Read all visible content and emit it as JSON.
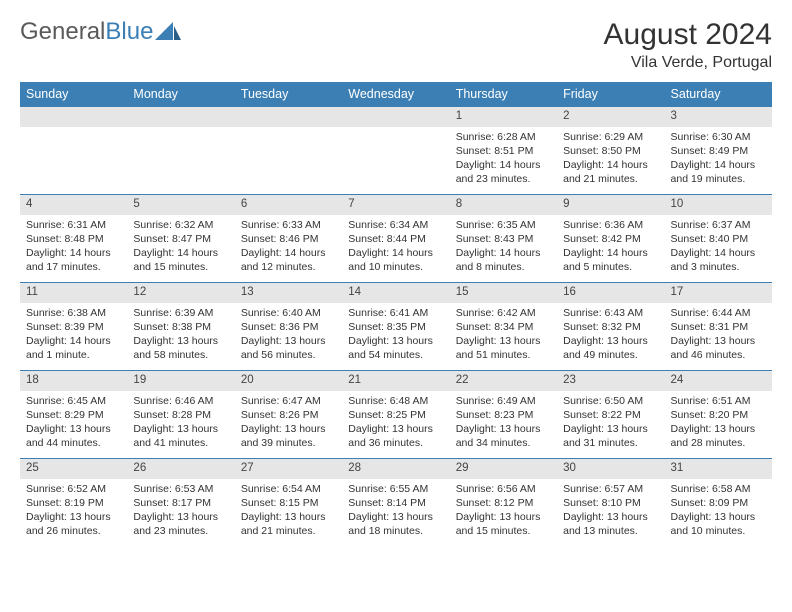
{
  "brand": {
    "text1": "General",
    "text2": "Blue"
  },
  "title": "August 2024",
  "location": "Vila Verde, Portugal",
  "colors": {
    "header_bg": "#3b7fb5",
    "header_text": "#ffffff",
    "daynum_bg": "#e6e6e6",
    "border": "#3b7fb5",
    "page_bg": "#ffffff",
    "text": "#333333",
    "logo_gray": "#5a5a5a",
    "logo_blue": "#3b7fb5"
  },
  "weekdays": [
    "Sunday",
    "Monday",
    "Tuesday",
    "Wednesday",
    "Thursday",
    "Friday",
    "Saturday"
  ],
  "weeks": [
    [
      null,
      null,
      null,
      null,
      {
        "n": "1",
        "sr": "6:28 AM",
        "ss": "8:51 PM",
        "dl": "14 hours and 23 minutes."
      },
      {
        "n": "2",
        "sr": "6:29 AM",
        "ss": "8:50 PM",
        "dl": "14 hours and 21 minutes."
      },
      {
        "n": "3",
        "sr": "6:30 AM",
        "ss": "8:49 PM",
        "dl": "14 hours and 19 minutes."
      }
    ],
    [
      {
        "n": "4",
        "sr": "6:31 AM",
        "ss": "8:48 PM",
        "dl": "14 hours and 17 minutes."
      },
      {
        "n": "5",
        "sr": "6:32 AM",
        "ss": "8:47 PM",
        "dl": "14 hours and 15 minutes."
      },
      {
        "n": "6",
        "sr": "6:33 AM",
        "ss": "8:46 PM",
        "dl": "14 hours and 12 minutes."
      },
      {
        "n": "7",
        "sr": "6:34 AM",
        "ss": "8:44 PM",
        "dl": "14 hours and 10 minutes."
      },
      {
        "n": "8",
        "sr": "6:35 AM",
        "ss": "8:43 PM",
        "dl": "14 hours and 8 minutes."
      },
      {
        "n": "9",
        "sr": "6:36 AM",
        "ss": "8:42 PM",
        "dl": "14 hours and 5 minutes."
      },
      {
        "n": "10",
        "sr": "6:37 AM",
        "ss": "8:40 PM",
        "dl": "14 hours and 3 minutes."
      }
    ],
    [
      {
        "n": "11",
        "sr": "6:38 AM",
        "ss": "8:39 PM",
        "dl": "14 hours and 1 minute."
      },
      {
        "n": "12",
        "sr": "6:39 AM",
        "ss": "8:38 PM",
        "dl": "13 hours and 58 minutes."
      },
      {
        "n": "13",
        "sr": "6:40 AM",
        "ss": "8:36 PM",
        "dl": "13 hours and 56 minutes."
      },
      {
        "n": "14",
        "sr": "6:41 AM",
        "ss": "8:35 PM",
        "dl": "13 hours and 54 minutes."
      },
      {
        "n": "15",
        "sr": "6:42 AM",
        "ss": "8:34 PM",
        "dl": "13 hours and 51 minutes."
      },
      {
        "n": "16",
        "sr": "6:43 AM",
        "ss": "8:32 PM",
        "dl": "13 hours and 49 minutes."
      },
      {
        "n": "17",
        "sr": "6:44 AM",
        "ss": "8:31 PM",
        "dl": "13 hours and 46 minutes."
      }
    ],
    [
      {
        "n": "18",
        "sr": "6:45 AM",
        "ss": "8:29 PM",
        "dl": "13 hours and 44 minutes."
      },
      {
        "n": "19",
        "sr": "6:46 AM",
        "ss": "8:28 PM",
        "dl": "13 hours and 41 minutes."
      },
      {
        "n": "20",
        "sr": "6:47 AM",
        "ss": "8:26 PM",
        "dl": "13 hours and 39 minutes."
      },
      {
        "n": "21",
        "sr": "6:48 AM",
        "ss": "8:25 PM",
        "dl": "13 hours and 36 minutes."
      },
      {
        "n": "22",
        "sr": "6:49 AM",
        "ss": "8:23 PM",
        "dl": "13 hours and 34 minutes."
      },
      {
        "n": "23",
        "sr": "6:50 AM",
        "ss": "8:22 PM",
        "dl": "13 hours and 31 minutes."
      },
      {
        "n": "24",
        "sr": "6:51 AM",
        "ss": "8:20 PM",
        "dl": "13 hours and 28 minutes."
      }
    ],
    [
      {
        "n": "25",
        "sr": "6:52 AM",
        "ss": "8:19 PM",
        "dl": "13 hours and 26 minutes."
      },
      {
        "n": "26",
        "sr": "6:53 AM",
        "ss": "8:17 PM",
        "dl": "13 hours and 23 minutes."
      },
      {
        "n": "27",
        "sr": "6:54 AM",
        "ss": "8:15 PM",
        "dl": "13 hours and 21 minutes."
      },
      {
        "n": "28",
        "sr": "6:55 AM",
        "ss": "8:14 PM",
        "dl": "13 hours and 18 minutes."
      },
      {
        "n": "29",
        "sr": "6:56 AM",
        "ss": "8:12 PM",
        "dl": "13 hours and 15 minutes."
      },
      {
        "n": "30",
        "sr": "6:57 AM",
        "ss": "8:10 PM",
        "dl": "13 hours and 13 minutes."
      },
      {
        "n": "31",
        "sr": "6:58 AM",
        "ss": "8:09 PM",
        "dl": "13 hours and 10 minutes."
      }
    ]
  ],
  "labels": {
    "sunrise": "Sunrise:",
    "sunset": "Sunset:",
    "daylight": "Daylight:"
  }
}
